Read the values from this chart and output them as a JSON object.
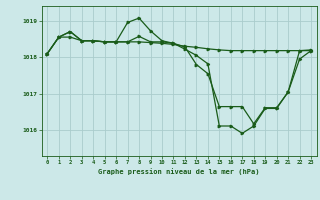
{
  "background_color": "#cce8e8",
  "grid_color": "#aacccc",
  "line_color": "#1a5c1a",
  "title": "Graphe pression niveau de la mer (hPa)",
  "xlim": [
    -0.5,
    23.5
  ],
  "ylim": [
    1015.3,
    1019.4
  ],
  "yticks": [
    1016,
    1017,
    1018,
    1019
  ],
  "xticks": [
    0,
    1,
    2,
    3,
    4,
    5,
    6,
    7,
    8,
    9,
    10,
    11,
    12,
    13,
    14,
    15,
    16,
    17,
    18,
    19,
    20,
    21,
    22,
    23
  ],
  "series1_x": [
    0,
    1,
    2,
    3,
    4,
    5,
    6,
    7,
    8,
    9,
    10,
    11,
    12,
    13,
    14,
    15,
    16,
    17,
    18,
    19,
    20,
    21,
    22,
    23
  ],
  "series1_y": [
    1018.1,
    1018.55,
    1018.55,
    1018.45,
    1018.45,
    1018.42,
    1018.42,
    1018.42,
    1018.42,
    1018.4,
    1018.38,
    1018.35,
    1018.3,
    1018.27,
    1018.23,
    1018.2,
    1018.18,
    1018.18,
    1018.18,
    1018.18,
    1018.18,
    1018.18,
    1018.18,
    1018.2
  ],
  "series2_x": [
    0,
    1,
    2,
    3,
    4,
    5,
    6,
    7,
    8,
    9,
    10,
    11,
    12,
    13,
    14,
    15,
    16,
    17,
    18,
    19,
    20,
    21,
    22,
    23
  ],
  "series2_y": [
    1018.1,
    1018.55,
    1018.7,
    1018.45,
    1018.45,
    1018.42,
    1018.42,
    1018.95,
    1019.07,
    1018.72,
    1018.45,
    1018.38,
    1018.22,
    1018.05,
    1017.82,
    1016.12,
    1016.12,
    1015.92,
    1016.12,
    1016.6,
    1016.6,
    1017.05,
    1017.95,
    1018.18
  ],
  "series3_x": [
    0,
    1,
    2,
    3,
    4,
    5,
    6,
    7,
    8,
    9,
    10,
    11,
    12,
    13,
    14,
    15,
    16,
    17,
    18,
    19,
    20,
    21,
    22,
    23
  ],
  "series3_y": [
    1018.1,
    1018.55,
    1018.7,
    1018.45,
    1018.45,
    1018.42,
    1018.42,
    1018.42,
    1018.57,
    1018.42,
    1018.42,
    1018.38,
    1018.28,
    1017.8,
    1017.55,
    1016.65,
    1016.65,
    1016.65,
    1016.18,
    1016.62,
    1016.62,
    1017.05,
    1018.18,
    1018.18
  ]
}
